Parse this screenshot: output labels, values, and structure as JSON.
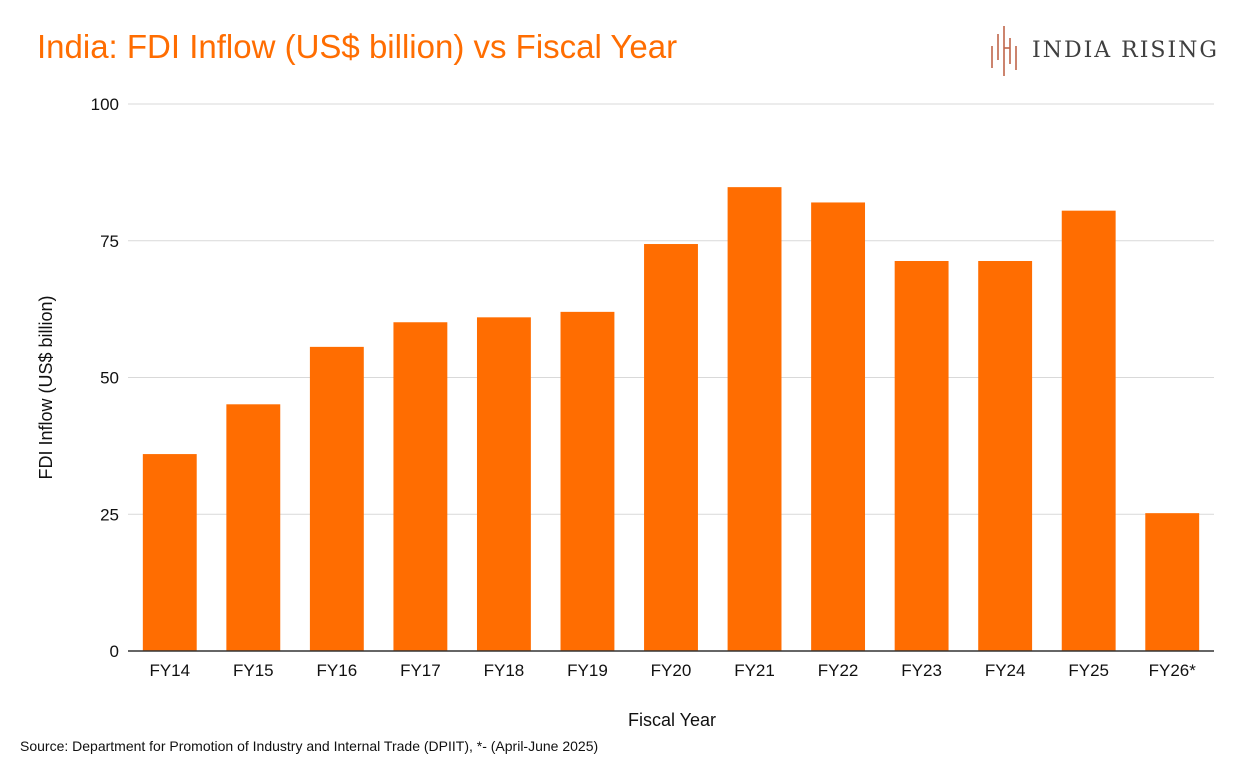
{
  "title": "India: FDI Inflow (US$ billion) vs Fiscal Year",
  "brand": {
    "name": "INDIA RISING",
    "logo_icon": "india-rising-logo-icon"
  },
  "source": "Source: Department for Promotion of Industry and Internal Trade (DPIIT), *- (April-June 2025)",
  "colors": {
    "bar": "#ff6d01",
    "title": "#ff6d01",
    "grid": "#d9d9d9",
    "axis": "#333333",
    "text": "#111111",
    "logo_accent": "#c0664a"
  },
  "chart_data": {
    "type": "bar",
    "title": "India: FDI Inflow (US$ billion) vs Fiscal Year",
    "xlabel": "Fiscal Year",
    "ylabel": "FDI Inflow (US$ billion)",
    "categories": [
      "FY14",
      "FY15",
      "FY16",
      "FY17",
      "FY18",
      "FY19",
      "FY20",
      "FY21",
      "FY22",
      "FY23",
      "FY24",
      "FY25",
      "FY26*"
    ],
    "values": [
      36,
      45.1,
      55.6,
      60.1,
      61,
      62,
      74.4,
      84.8,
      82,
      71.3,
      71.3,
      80.5,
      25.2
    ],
    "ylim": [
      0,
      100
    ],
    "yticks": [
      0,
      25,
      50,
      75,
      100
    ],
    "grid": true,
    "legend": "none"
  }
}
